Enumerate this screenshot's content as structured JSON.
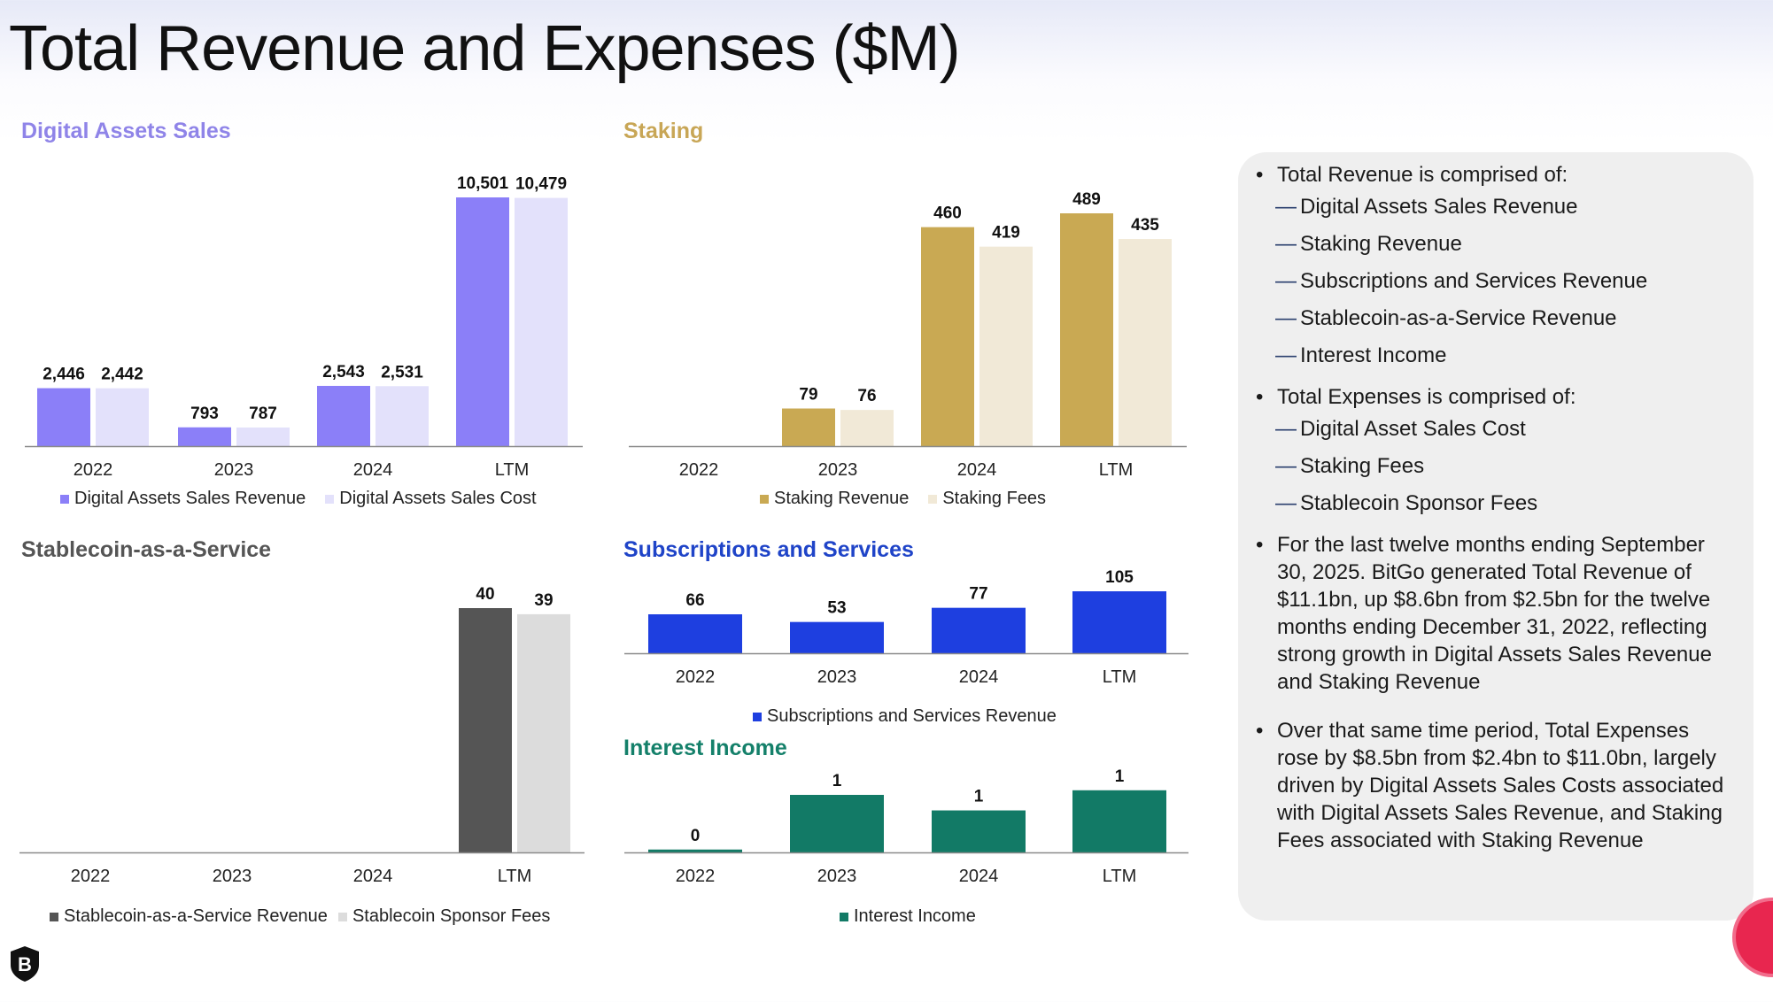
{
  "title": "Total Revenue and Expenses ($M)",
  "colors": {
    "da_rev": "#8b7ff8",
    "da_cost": "#e3e1fb",
    "stk_rev": "#c9a953",
    "stk_fee": "#f1e9d7",
    "sc_rev": "#555555",
    "sc_fee": "#dcdcdc",
    "subs": "#1e3fe0",
    "interest": "#127a66"
  },
  "chart_data": [
    {
      "id": "digital_assets",
      "type": "bar",
      "title": "Digital Assets Sales",
      "categories": [
        "2022",
        "2023",
        "2024",
        "LTM"
      ],
      "series": [
        {
          "name": "Digital Assets Sales Revenue",
          "values": [
            2446,
            793,
            2543,
            10501
          ],
          "labels": [
            "2,446",
            "793",
            "2,543",
            "10,501"
          ],
          "color": "#8b7ff8"
        },
        {
          "name": "Digital Assets Sales Cost",
          "values": [
            2442,
            787,
            2531,
            10479
          ],
          "labels": [
            "2,442",
            "787",
            "2,531",
            "10,479"
          ],
          "color": "#e3e1fb"
        }
      ],
      "legend": "bottom"
    },
    {
      "id": "staking",
      "type": "bar",
      "title": "Staking",
      "categories": [
        "2022",
        "2023",
        "2024",
        "LTM"
      ],
      "series": [
        {
          "name": "Staking Revenue",
          "values": [
            null,
            79,
            460,
            489
          ],
          "labels": [
            "",
            "79",
            "460",
            "489"
          ],
          "color": "#c9a953"
        },
        {
          "name": "Staking Fees",
          "values": [
            null,
            76,
            419,
            435
          ],
          "labels": [
            "",
            "76",
            "419",
            "435"
          ],
          "color": "#f1e9d7"
        }
      ],
      "legend": "bottom"
    },
    {
      "id": "stablecoin",
      "type": "bar",
      "title": "Stablecoin-as-a-Service",
      "categories": [
        "2022",
        "2023",
        "2024",
        "LTM"
      ],
      "series": [
        {
          "name": "Stablecoin-as-a-Service Revenue",
          "values": [
            null,
            null,
            null,
            40
          ],
          "labels": [
            "",
            "",
            "",
            "40"
          ],
          "color": "#555555"
        },
        {
          "name": "Stablecoin Sponsor Fees",
          "values": [
            null,
            null,
            null,
            39
          ],
          "labels": [
            "",
            "",
            "",
            "39"
          ],
          "color": "#dcdcdc"
        }
      ],
      "legend": "bottom"
    },
    {
      "id": "subscriptions",
      "type": "bar",
      "title": "Subscriptions and Services",
      "categories": [
        "2022",
        "2023",
        "2024",
        "LTM"
      ],
      "series": [
        {
          "name": "Subscriptions and Services Revenue",
          "values": [
            66,
            53,
            77,
            105
          ],
          "labels": [
            "66",
            "53",
            "77",
            "105"
          ],
          "color": "#1e3fe0"
        }
      ],
      "legend": "bottom"
    },
    {
      "id": "interest",
      "type": "bar",
      "title": "Interest Income",
      "categories": [
        "2022",
        "2023",
        "2024",
        "LTM"
      ],
      "series": [
        {
          "name": "Interest Income",
          "values": [
            0.05,
            1.0,
            0.73,
            1.08
          ],
          "labels": [
            "0",
            "1",
            "1",
            "1"
          ],
          "color": "#127a66"
        }
      ],
      "legend": "bottom"
    }
  ],
  "panel": {
    "revenue_head": "Total Revenue is comprised of:",
    "revenue_items": [
      "Digital Assets Sales Revenue",
      "Staking Revenue",
      "Subscriptions and Services Revenue",
      "Stablecoin-as-a-Service Revenue",
      "Interest Income"
    ],
    "expense_head": "Total Expenses is comprised of:",
    "expense_items": [
      "Digital Asset Sales Cost",
      "Staking Fees",
      "Stablecoin Sponsor Fees"
    ],
    "dash": "—",
    "para1": "For the last twelve months ending September 30, 2025. BitGo generated Total Revenue of $11.1bn, up $8.6bn from $2.5bn for the twelve months ending December 31, 2022, reflecting strong growth in Digital Assets Sales Revenue and Staking Revenue",
    "para2": "Over that same time period, Total Expenses rose by $8.5bn from $2.4bn to $11.0bn, largely driven by Digital Assets Sales Costs associated with Digital Assets Sales Revenue, and Staking Fees associated with Staking Revenue"
  }
}
